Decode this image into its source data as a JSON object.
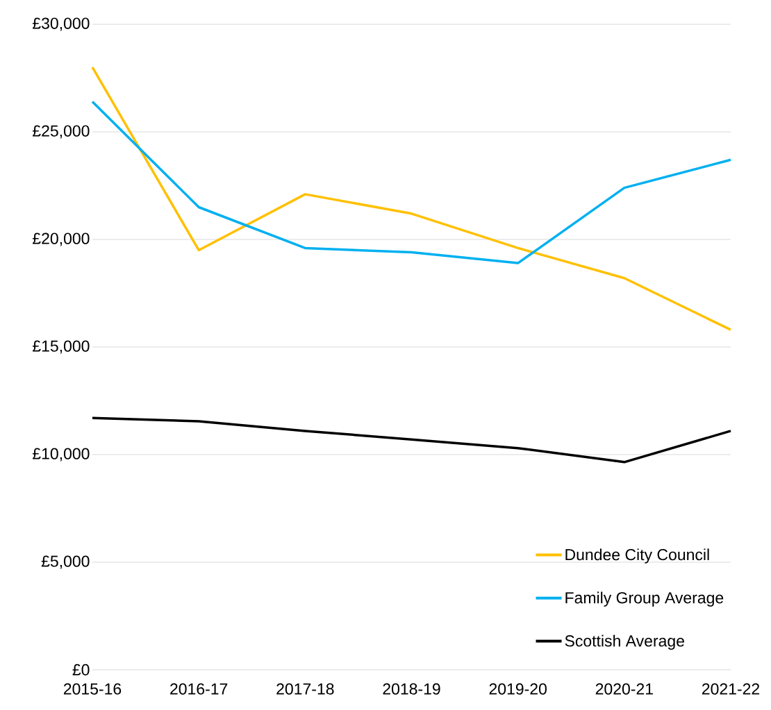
{
  "chart_data": {
    "type": "line",
    "categories": [
      "2015-16",
      "2016-17",
      "2017-18",
      "2018-19",
      "2019-20",
      "2020-21",
      "2021-22"
    ],
    "series": [
      {
        "name": "Dundee City Council",
        "color": "#ffc000",
        "values": [
          28000,
          19500,
          22100,
          21200,
          19600,
          18200,
          15800
        ]
      },
      {
        "name": "Family Group Average",
        "color": "#00b0f0",
        "values": [
          26400,
          21500,
          19600,
          19400,
          18900,
          22400,
          23700
        ]
      },
      {
        "name": "Scottish Average",
        "color": "#000000",
        "values": [
          11700,
          11550,
          11100,
          10700,
          10300,
          9650,
          11100
        ]
      }
    ],
    "ylim": [
      0,
      30000
    ],
    "yticks": [
      {
        "value": 0,
        "label": "£0"
      },
      {
        "value": 5000,
        "label": "£5,000"
      },
      {
        "value": 10000,
        "label": "£10,000"
      },
      {
        "value": 15000,
        "label": "£15,000"
      },
      {
        "value": 20000,
        "label": "£20,000"
      },
      {
        "value": 25000,
        "label": "£25,000"
      },
      {
        "value": 30000,
        "label": "£30,000"
      }
    ],
    "grid": "y",
    "legend": "bottom right",
    "marker": "none",
    "line_style": "solid"
  }
}
